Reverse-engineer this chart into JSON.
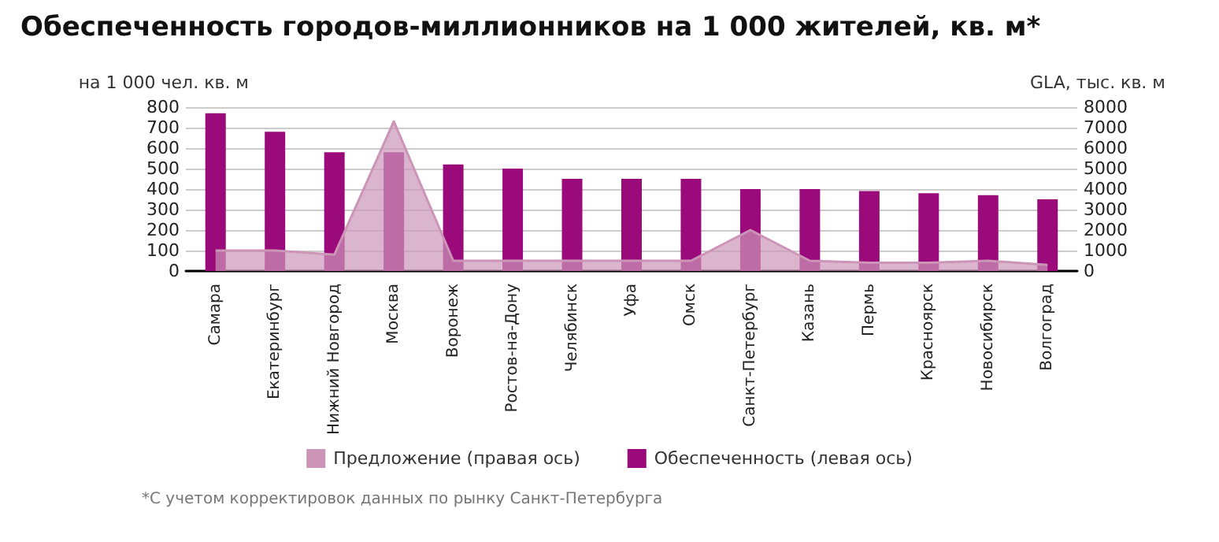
{
  "chart_data": {
    "type": "bar",
    "title": "Обеспеченность городов-миллионников на 1 000 жителей, кв. м*",
    "ylabel": "на 1 000 чел. кв. м",
    "y2label": "GLA, тыс. кв. м",
    "categories": [
      "Самара",
      "Екатеринбург",
      "Нижний Новгород",
      "Москва",
      "Воронеж",
      "Ростов-на-Дону",
      "Челябинск",
      "Уфа",
      "Омск",
      "Санкт-Петербург",
      "Казань",
      "Пермь",
      "Красноярск",
      "Новосибирск",
      "Волгоград"
    ],
    "series": [
      {
        "name": "Предложение (правая ось)",
        "type": "area",
        "axis": "y2",
        "color": "#cc95b8",
        "values": [
          1000,
          1000,
          800,
          7300,
          500,
          500,
          500,
          500,
          500,
          2000,
          500,
          400,
          400,
          500,
          300
        ]
      },
      {
        "name": "Обеспеченность (левая ось)",
        "color": "#9b0a7a",
        "values": [
          770,
          680,
          580,
          580,
          520,
          500,
          450,
          450,
          450,
          400,
          400,
          390,
          380,
          370,
          350
        ]
      }
    ],
    "ylim": [
      0,
      800
    ],
    "yticks": [
      0,
      100,
      200,
      300,
      400,
      500,
      600,
      700,
      800
    ],
    "y2lim": [
      0,
      8000
    ],
    "y2ticks": [
      0,
      1000,
      2000,
      3000,
      4000,
      5000,
      6000,
      7000,
      8000
    ],
    "grid": "y",
    "legend": "bottom",
    "annotations": [
      "*С учетом корректировок данных по рынку Санкт-Петербурга"
    ]
  }
}
